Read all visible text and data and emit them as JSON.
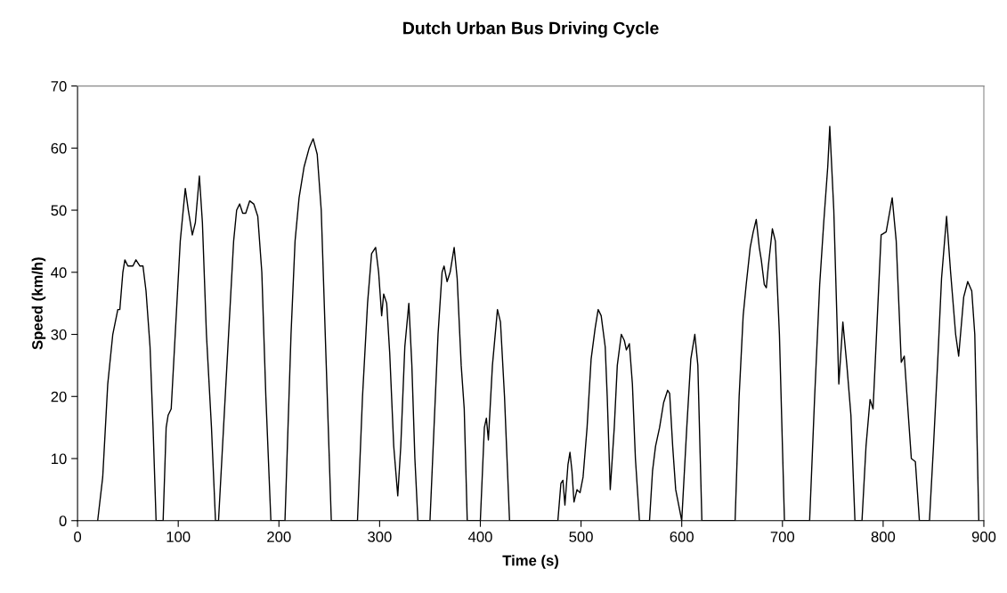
{
  "chart_data": {
    "type": "line",
    "title": "Dutch Urban Bus Driving Cycle",
    "xlabel": "Time (s)",
    "ylabel": "Speed (km/h)",
    "xlim": [
      0,
      900
    ],
    "xticks": [
      0,
      100,
      200,
      300,
      400,
      500,
      600,
      700,
      800,
      900
    ],
    "ylim": [
      0,
      70
    ],
    "yticks": [
      0,
      10,
      20,
      30,
      40,
      50,
      60,
      70
    ],
    "grid": false,
    "legend": false,
    "marker": "none",
    "line_style": "solid",
    "series": [
      {
        "color": "#000000",
        "x": [
          20,
          25,
          30,
          35,
          40,
          42,
          45,
          47,
          50,
          55,
          58,
          62,
          65,
          68,
          72,
          75,
          78,
          85,
          88,
          90,
          93,
          97,
          102,
          107,
          110,
          114,
          117,
          121,
          124,
          128,
          133,
          137,
          140,
          145,
          150,
          155,
          158,
          161,
          164,
          167,
          171,
          175,
          179,
          183,
          187,
          192,
          206,
          212,
          216,
          220,
          225,
          230,
          234,
          238,
          242,
          247,
          252,
          278,
          283,
          288,
          292,
          296,
          299,
          302,
          304,
          307,
          310,
          314,
          318,
          321,
          325,
          329,
          332,
          335,
          338,
          350,
          354,
          358,
          362,
          364,
          367,
          370,
          374,
          377,
          381,
          384,
          387,
          400,
          404,
          406,
          408,
          412,
          417,
          420,
          424,
          429,
          477,
          480,
          482,
          484,
          487,
          489,
          491,
          493,
          496,
          499,
          502,
          506,
          510,
          514,
          517,
          520,
          524,
          526,
          529,
          533,
          536,
          540,
          543,
          545,
          548,
          551,
          554,
          558,
          568,
          571,
          574,
          578,
          582,
          586,
          588,
          591,
          594,
          600,
          605,
          609,
          613,
          616,
          620,
          653,
          657,
          661,
          664,
          668,
          671,
          674,
          677,
          679,
          682,
          684,
          686,
          690,
          693,
          697,
          702,
          727,
          732,
          737,
          741,
          745,
          747,
          751,
          756,
          760,
          764,
          768,
          772,
          779,
          783,
          787,
          790,
          794,
          798,
          803,
          809,
          813,
          818,
          821,
          825,
          828,
          832,
          836,
          846,
          850,
          854,
          858,
          863,
          867,
          872,
          875,
          880,
          884,
          888,
          891,
          895
        ],
        "values": [
          0,
          7,
          22,
          30,
          34,
          34,
          40,
          42,
          41,
          41,
          42,
          41,
          41,
          37,
          28,
          15,
          0,
          0,
          15,
          17,
          18,
          30,
          45,
          53.5,
          50,
          46,
          48,
          55.5,
          48,
          30,
          15,
          0,
          0,
          15,
          30,
          45,
          50,
          51,
          49.5,
          49.5,
          51.5,
          51,
          49,
          40,
          20,
          0,
          0,
          30,
          45,
          52,
          57,
          60,
          61.5,
          59,
          50,
          25,
          0,
          0,
          20,
          35,
          43,
          44,
          40,
          33,
          36.5,
          35,
          27,
          12,
          4,
          12,
          28,
          35,
          25,
          10,
          0,
          0,
          15,
          30,
          40,
          41,
          38.5,
          40,
          44,
          39,
          25,
          18,
          0,
          0,
          15,
          16.5,
          13,
          25,
          34,
          32,
          20,
          0,
          0,
          6,
          6.5,
          2.5,
          9,
          11,
          8,
          3,
          5,
          4.5,
          7,
          15,
          26,
          31,
          34,
          33,
          28,
          20,
          5,
          15,
          25,
          30,
          29,
          27.5,
          28.5,
          22,
          10,
          0,
          0,
          8,
          12,
          15,
          19,
          21,
          20.5,
          12,
          5,
          0,
          15,
          26,
          30,
          25,
          0,
          0,
          20,
          33,
          38,
          44,
          46.5,
          48.5,
          44,
          42,
          38,
          37.5,
          41,
          47,
          45,
          30,
          0,
          0,
          20,
          38,
          48,
          57,
          63.5,
          50,
          22,
          32,
          25,
          17,
          0,
          0,
          12,
          19.5,
          18,
          32,
          46,
          46.5,
          52,
          45,
          25.5,
          26.5,
          17,
          10,
          9.5,
          0,
          0,
          12,
          25,
          39,
          49,
          40,
          30,
          26.5,
          36,
          38.5,
          37,
          30,
          0
        ]
      }
    ]
  }
}
